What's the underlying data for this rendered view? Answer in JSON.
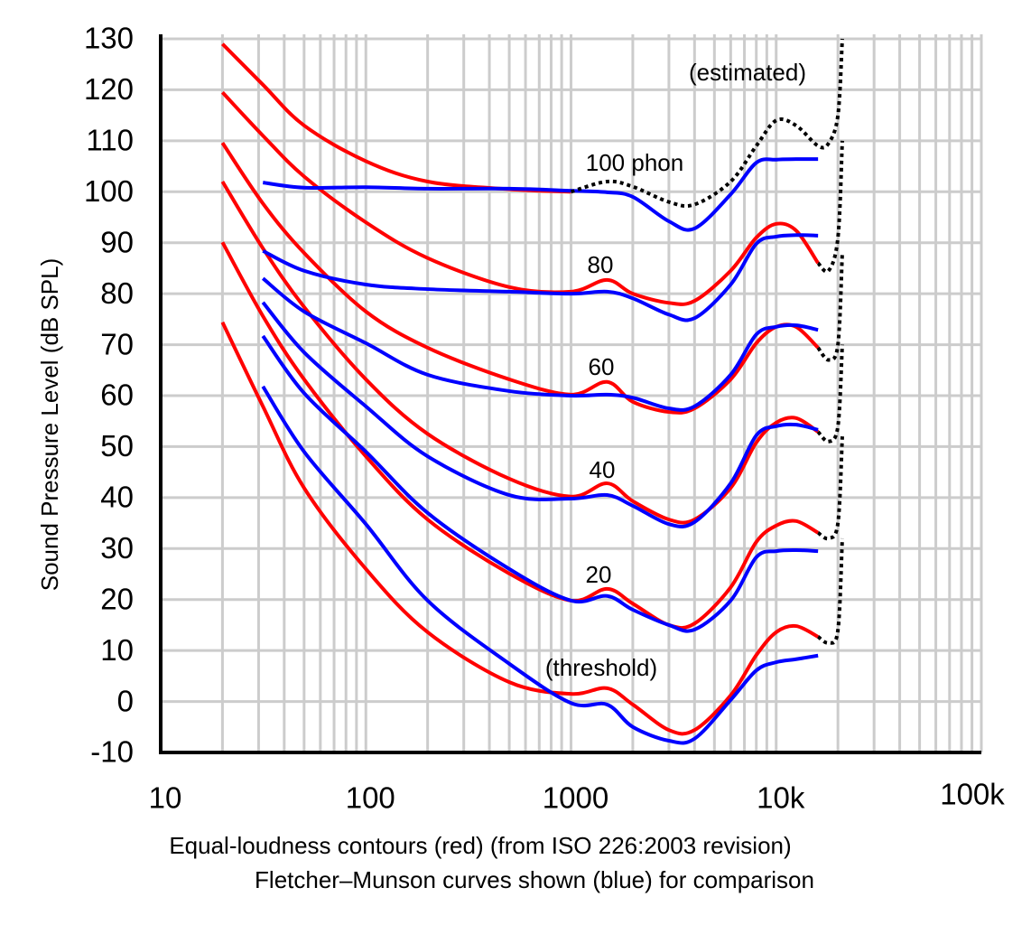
{
  "chart_data": {
    "type": "line",
    "ylabel": "Sound Pressure Level (dB SPL)",
    "xlabel": [
      "Equal-loudness contours (red) (from ISO 226:2003 revision)",
      "Fletcher–Munson curves shown (blue) for comparison"
    ],
    "log_x": true,
    "grid": true,
    "xlim": [
      10,
      100000
    ],
    "ylim": [
      -10,
      130
    ],
    "xticks": [
      10,
      100,
      1000,
      {
        "value": 10000,
        "label": "10k"
      },
      {
        "value": 100000,
        "label": "100k"
      }
    ],
    "xminorticks": [
      20,
      30,
      40,
      50,
      60,
      70,
      80,
      90,
      200,
      300,
      400,
      500,
      600,
      700,
      800,
      900,
      2000,
      3000,
      4000,
      5000,
      6000,
      7000,
      8000,
      9000,
      20000,
      30000,
      40000,
      50000,
      60000,
      70000,
      80000,
      90000
    ],
    "yticks": [
      -10,
      0,
      10,
      20,
      30,
      40,
      50,
      60,
      70,
      80,
      90,
      100,
      110,
      120,
      130
    ],
    "x": [
      20,
      31.5,
      50,
      100,
      200,
      500,
      1000,
      1500,
      2000,
      3000,
      4000,
      6000,
      8000,
      10000,
      12500,
      16000,
      18000,
      20000,
      21000
    ],
    "series": [
      {
        "color": "#ff0000",
        "label": "100 phon",
        "values": [
          129,
          121,
          113,
          106,
          102,
          100.5,
          100,
          null,
          null,
          null,
          null,
          null,
          null,
          null,
          null,
          null,
          null,
          null,
          null
        ]
      },
      {
        "color": "#ff0000",
        "label": "80",
        "values": [
          119.5,
          111,
          103,
          94,
          87,
          81.3,
          80.4,
          82.7,
          80,
          78.2,
          78.6,
          84.5,
          91,
          93.7,
          92.4,
          86,
          null,
          null,
          null
        ]
      },
      {
        "color": "#ff0000",
        "label": "60",
        "values": [
          109.6,
          97.7,
          88,
          76.5,
          69.4,
          63.2,
          60.2,
          62.7,
          58.8,
          56.8,
          57.5,
          63.2,
          70.3,
          73.5,
          73.5,
          69.4,
          null,
          null,
          null
        ]
      },
      {
        "color": "#ff0000",
        "label": "40",
        "values": [
          102,
          88.9,
          77.4,
          63.2,
          52.5,
          43.7,
          40.2,
          42.8,
          39.3,
          35.7,
          35.7,
          41.9,
          50.8,
          54.7,
          55.6,
          52.9,
          null,
          null,
          null
        ]
      },
      {
        "color": "#ff0000",
        "label": "20",
        "values": [
          90.1,
          75.6,
          63.2,
          48.1,
          35.7,
          25.1,
          19.8,
          22.1,
          19.2,
          15,
          15.3,
          22.4,
          31.3,
          34.5,
          35.4,
          33.1,
          null,
          null,
          null
        ]
      },
      {
        "color": "#ff0000",
        "label": "(threshold)",
        "values": [
          74.4,
          57.9,
          41.9,
          26,
          13.6,
          3.8,
          1.5,
          2.6,
          -0.6,
          -5.6,
          -5.6,
          1.2,
          9.1,
          13.6,
          14.8,
          12.7,
          null,
          null,
          null
        ]
      },
      {
        "color": "#0000ff",
        "values": [
          null,
          101.8,
          100.8,
          100.9,
          100.6,
          100.6,
          100.2,
          99.9,
          99,
          94.2,
          92.8,
          99.5,
          105.7,
          106.3,
          106.4,
          106.4,
          null,
          null,
          null
        ]
      },
      {
        "color": "#0000ff",
        "values": [
          null,
          88.4,
          84.5,
          81.8,
          80.9,
          80.4,
          80,
          80.4,
          79.1,
          75.9,
          75.2,
          81.8,
          89.8,
          91.2,
          91.5,
          91.4,
          null,
          null,
          null
        ]
      },
      {
        "color": "#0000ff",
        "values": [
          null,
          83,
          76.5,
          70.3,
          64.1,
          60.9,
          60,
          60.2,
          59.6,
          57.5,
          57.9,
          64.1,
          72,
          73.5,
          73.8,
          72.9,
          null,
          null,
          null
        ]
      },
      {
        "color": "#0000ff",
        "values": [
          null,
          78.3,
          68.5,
          57.9,
          48.1,
          40.5,
          39.8,
          40.5,
          38.4,
          34.8,
          35.2,
          42.8,
          52.2,
          54,
          54.3,
          53.3,
          null,
          null,
          null
        ]
      },
      {
        "color": "#0000ff",
        "values": [
          null,
          71.7,
          60.5,
          49,
          37,
          26,
          19.8,
          20.7,
          18,
          15,
          14.1,
          19.8,
          28.3,
          29.5,
          29.7,
          29.5,
          null,
          null,
          null
        ]
      },
      {
        "color": "#0000ff",
        "values": [
          null,
          61.8,
          49,
          34.8,
          19.8,
          7.4,
          -0.3,
          -0.6,
          -5,
          -7.7,
          -7.3,
          0.3,
          6.1,
          7.7,
          8.3,
          9,
          null,
          null,
          null
        ]
      },
      {
        "color": "#000000",
        "style": "dotted",
        "label": "(estimated)",
        "values": [
          null,
          null,
          null,
          null,
          null,
          null,
          100,
          102,
          101,
          98,
          97.5,
          102,
          109,
          114,
          113,
          109,
          109.5,
          115,
          130
        ]
      },
      {
        "color": "#000000",
        "style": "dotted",
        "values": [
          null,
          null,
          null,
          null,
          null,
          null,
          null,
          null,
          null,
          null,
          null,
          null,
          null,
          null,
          null,
          86,
          84.5,
          91,
          110
        ]
      },
      {
        "color": "#000000",
        "style": "dotted",
        "values": [
          null,
          null,
          null,
          null,
          null,
          null,
          null,
          null,
          null,
          null,
          null,
          null,
          null,
          null,
          null,
          69.4,
          67,
          70,
          88
        ]
      },
      {
        "color": "#000000",
        "style": "dotted",
        "values": [
          null,
          null,
          null,
          null,
          null,
          null,
          null,
          null,
          null,
          null,
          null,
          null,
          null,
          null,
          null,
          52.9,
          51,
          54,
          70
        ]
      },
      {
        "color": "#000000",
        "style": "dotted",
        "values": [
          null,
          null,
          null,
          null,
          null,
          null,
          null,
          null,
          null,
          null,
          null,
          null,
          null,
          null,
          null,
          33.1,
          32,
          35,
          52
        ]
      },
      {
        "color": "#000000",
        "style": "dotted",
        "values": [
          null,
          null,
          null,
          null,
          null,
          null,
          null,
          null,
          null,
          null,
          null,
          null,
          null,
          null,
          null,
          12.7,
          11.5,
          14,
          32
        ]
      }
    ]
  }
}
